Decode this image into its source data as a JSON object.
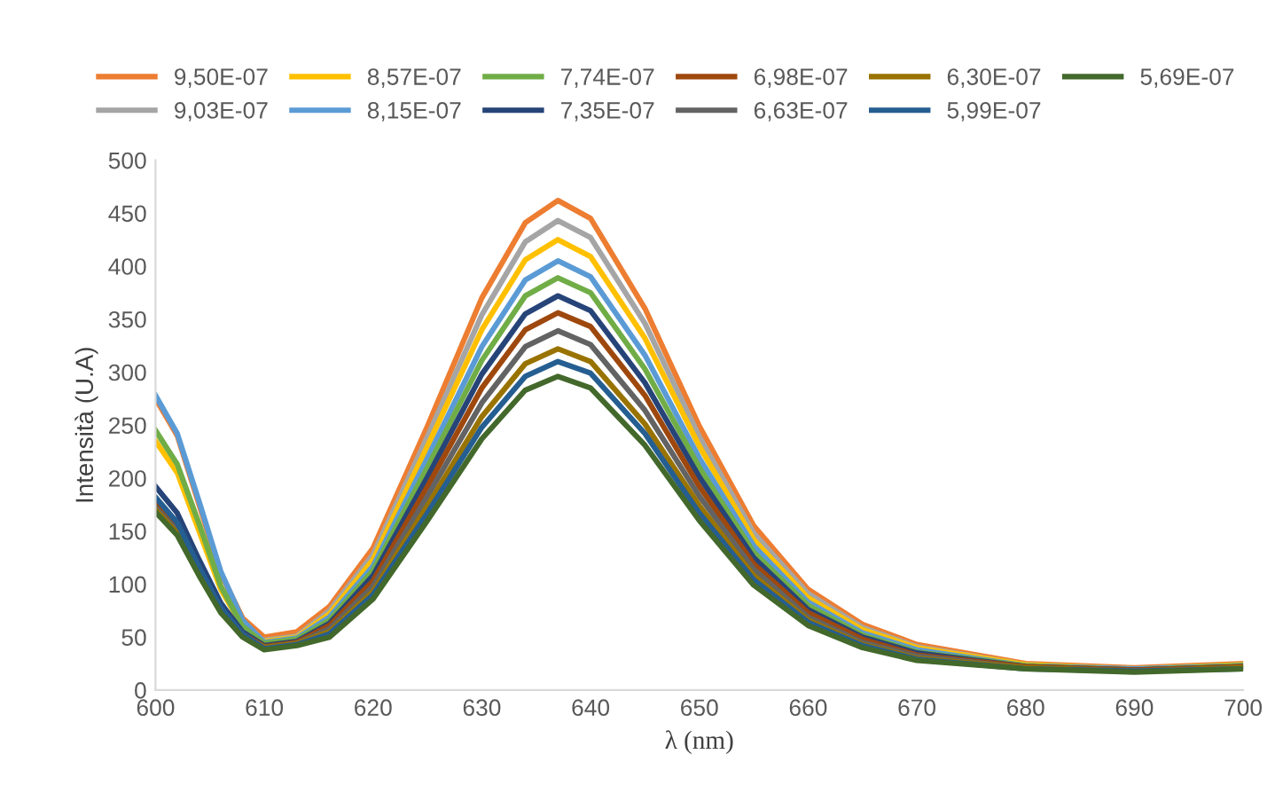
{
  "chart_data": {
    "type": "line",
    "xlabel": "λ (nm)",
    "ylabel": "Intensità (U.A)",
    "xlim": [
      600,
      700
    ],
    "xticks": [
      600,
      610,
      620,
      630,
      640,
      650,
      660,
      670,
      680,
      690,
      700
    ],
    "ylim": [
      0,
      500
    ],
    "yticks": [
      0,
      50,
      100,
      150,
      200,
      250,
      300,
      350,
      400,
      450,
      500
    ],
    "grid": false,
    "legend": "top",
    "marker": "none",
    "line_style": "solid",
    "x": [
      600,
      602,
      604,
      606,
      608,
      610,
      613,
      616,
      620,
      625,
      630,
      634,
      637,
      640,
      645,
      650,
      655,
      660,
      665,
      670,
      680,
      690,
      700
    ],
    "series": [
      {
        "name": "9,50E-07",
        "color": "#ed7d31",
        "values": [
          275,
          240,
          175,
          110,
          68,
          50,
          55,
          79,
          134,
          249,
          370,
          441,
          462,
          445,
          360,
          249,
          155,
          95,
          62,
          43,
          25,
          21,
          25
        ]
      },
      {
        "name": "9,03E-07",
        "color": "#a5a5a5",
        "values": [
          178,
          155,
          115,
          78,
          55,
          47,
          51,
          75,
          128,
          239,
          354,
          423,
          443,
          427,
          346,
          239,
          148,
          91,
          59,
          41,
          24,
          20,
          24
        ]
      },
      {
        "name": "8,57E-07",
        "color": "#ffc000",
        "values": [
          235,
          205,
          150,
          95,
          60,
          46,
          50,
          72,
          123,
          230,
          340,
          406,
          425,
          409,
          332,
          230,
          142,
          87,
          57,
          40,
          24,
          20,
          24
        ]
      },
      {
        "name": "8,15E-07",
        "color": "#5b9bd5",
        "values": [
          278,
          242,
          178,
          112,
          66,
          45,
          49,
          69,
          117,
          219,
          324,
          387,
          405,
          390,
          316,
          219,
          136,
          83,
          54,
          38,
          23,
          20,
          23
        ]
      },
      {
        "name": "7,74E-07",
        "color": "#70ad47",
        "values": [
          245,
          213,
          157,
          98,
          60,
          44,
          48,
          66,
          113,
          210,
          311,
          372,
          389,
          375,
          303,
          210,
          130,
          80,
          52,
          36,
          23,
          19,
          23
        ]
      },
      {
        "name": "7,35E-07",
        "color": "#264478",
        "values": [
          192,
          167,
          123,
          82,
          55,
          42,
          46,
          63,
          108,
          201,
          298,
          355,
          372,
          358,
          290,
          201,
          125,
          76,
          50,
          35,
          22,
          19,
          22
        ]
      },
      {
        "name": "6,98E-07",
        "color": "#9e480e",
        "values": [
          175,
          152,
          112,
          76,
          53,
          41,
          45,
          61,
          103,
          192,
          285,
          340,
          356,
          343,
          278,
          192,
          119,
          73,
          48,
          33,
          22,
          19,
          22
        ]
      },
      {
        "name": "6,63E-07",
        "color": "#636363",
        "values": [
          172,
          150,
          110,
          75,
          52,
          40,
          44,
          58,
          98,
          183,
          271,
          324,
          339,
          326,
          264,
          183,
          114,
          69,
          45,
          32,
          21,
          18,
          21
        ]
      },
      {
        "name": "6,30E-07",
        "color": "#997300",
        "values": [
          170,
          148,
          109,
          74,
          52,
          40,
          44,
          55,
          93,
          174,
          258,
          308,
          322,
          310,
          251,
          174,
          108,
          66,
          43,
          30,
          21,
          18,
          21
        ]
      },
      {
        "name": "5,99E-07",
        "color": "#255e91",
        "values": [
          182,
          158,
          116,
          78,
          53,
          39,
          43,
          53,
          90,
          167,
          248,
          296,
          310,
          299,
          242,
          167,
          104,
          64,
          42,
          29,
          20,
          18,
          20
        ]
      },
      {
        "name": "5,69E-07",
        "color": "#43682b",
        "values": [
          168,
          146,
          108,
          73,
          50,
          38,
          42,
          50,
          86,
          160,
          237,
          283,
          296,
          285,
          231,
          160,
          99,
          61,
          40,
          28,
          20,
          17,
          20
        ]
      }
    ]
  }
}
